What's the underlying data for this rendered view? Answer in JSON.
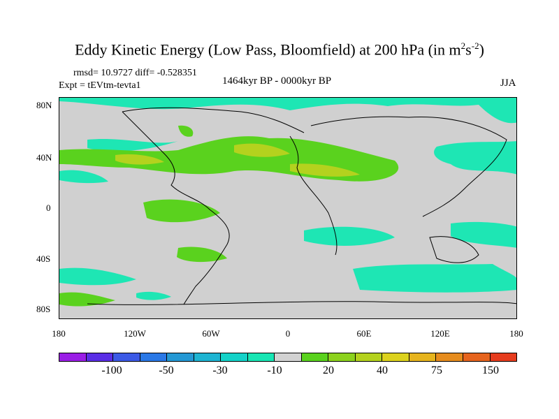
{
  "title": "Eddy Kinetic Energy (Low Pass, Bloomfield) at 200 hPa (in m",
  "title_unit_sup1": "2",
  "title_unit_s": "s",
  "title_unit_sup2": "-2",
  "title_close": ")",
  "rmsd_text": "rmsd= 10.9727 diff= -0.528351",
  "expt_text": "Expt = tEVtm-tevta1",
  "period_text": "1464kyr BP - 0000kyr BP",
  "season_text": "JJA",
  "y_ticks": [
    "80N",
    "40N",
    "0",
    "40S",
    "80S"
  ],
  "x_ticks": [
    "180",
    "120W",
    "60W",
    "0",
    "60E",
    "120E",
    "180"
  ],
  "colorbar": {
    "colors": [
      "#9a1ee6",
      "#5a2ee6",
      "#3c5ae6",
      "#2a78e6",
      "#2498d4",
      "#1eb4d2",
      "#14d2c8",
      "#18e6b4",
      "#d2d2d2",
      "#5ad21e",
      "#8cd21e",
      "#b4d21e",
      "#dcd21e",
      "#e6b41e",
      "#e68c1e",
      "#e6641e",
      "#e63c1e"
    ],
    "labels": [
      "-100",
      "-50",
      "-30",
      "-10",
      "20",
      "40",
      "75",
      "150"
    ]
  },
  "colors": {
    "background": "#d2d2d2",
    "cyan": "#1ee6b4",
    "green": "#5ad21e",
    "yellow_green": "#b4d21e"
  }
}
